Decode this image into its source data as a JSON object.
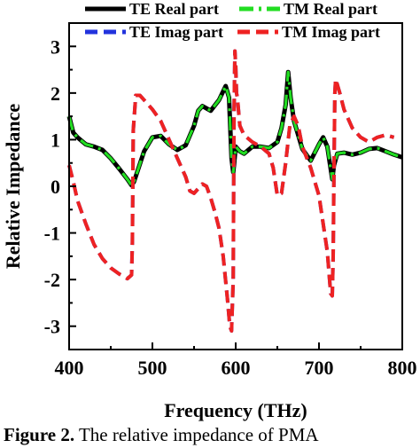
{
  "chart_data": {
    "type": "line",
    "xlabel": "Frequency (THz)",
    "ylabel": "Relative Impedance",
    "xlim": [
      400,
      800
    ],
    "ylim": [
      -3.5,
      3.5
    ],
    "xticks": [
      400,
      500,
      600,
      700,
      800
    ],
    "yticks": [
      -3,
      -2,
      -1,
      0,
      1,
      2,
      3
    ],
    "grid": false,
    "legend_position": "top",
    "series": [
      {
        "name": "TE Real part",
        "color": "#000000",
        "style": "solid",
        "x": [
          400,
          405,
          410,
          420,
          430,
          440,
          450,
          460,
          470,
          475,
          478,
          482,
          490,
          500,
          510,
          520,
          530,
          540,
          550,
          555,
          560,
          570,
          580,
          588,
          592,
          595,
          597,
          598,
          600,
          605,
          610,
          620,
          630,
          640,
          650,
          655,
          660,
          663,
          666,
          670,
          680,
          690,
          700,
          705,
          710,
          713,
          716,
          718,
          722,
          730,
          740,
          750,
          760,
          770,
          780,
          790,
          800
        ],
        "y": [
          1.5,
          1.15,
          1.05,
          0.9,
          0.85,
          0.78,
          0.6,
          0.38,
          0.15,
          0.02,
          0.1,
          0.32,
          0.75,
          1.05,
          1.08,
          0.9,
          0.78,
          0.88,
          1.3,
          1.62,
          1.72,
          1.62,
          1.85,
          2.15,
          1.9,
          0.6,
          0.3,
          0.45,
          0.85,
          0.75,
          0.7,
          0.85,
          0.85,
          0.82,
          0.95,
          1.25,
          1.75,
          2.45,
          1.9,
          1.4,
          0.8,
          0.55,
          0.9,
          1.05,
          0.85,
          0.5,
          0.15,
          0.45,
          0.7,
          0.72,
          0.68,
          0.72,
          0.8,
          0.82,
          0.75,
          0.68,
          0.62
        ]
      },
      {
        "name": "TM Real part",
        "color": "#22dd22",
        "style": "dash-dot",
        "x": [
          400,
          405,
          410,
          420,
          430,
          440,
          450,
          460,
          470,
          475,
          478,
          482,
          490,
          500,
          510,
          520,
          530,
          540,
          550,
          555,
          560,
          570,
          580,
          588,
          592,
          595,
          597,
          598,
          600,
          605,
          610,
          620,
          630,
          640,
          650,
          655,
          660,
          663,
          666,
          670,
          680,
          690,
          700,
          705,
          710,
          713,
          716,
          718,
          722,
          730,
          740,
          750,
          760,
          770,
          780,
          790,
          800
        ],
        "y": [
          1.5,
          1.15,
          1.05,
          0.9,
          0.85,
          0.78,
          0.6,
          0.38,
          0.15,
          0.02,
          0.1,
          0.32,
          0.75,
          1.05,
          1.08,
          0.9,
          0.78,
          0.88,
          1.3,
          1.62,
          1.72,
          1.62,
          1.85,
          2.15,
          1.9,
          0.6,
          0.3,
          0.45,
          0.85,
          0.75,
          0.7,
          0.85,
          0.85,
          0.82,
          0.95,
          1.25,
          1.75,
          2.45,
          1.9,
          1.4,
          0.8,
          0.55,
          0.9,
          1.05,
          0.85,
          0.5,
          0.15,
          0.45,
          0.7,
          0.72,
          0.68,
          0.72,
          0.8,
          0.82,
          0.75,
          0.68,
          0.62
        ]
      },
      {
        "name": "TE Imag part",
        "color": "#2233dd",
        "style": "dashed",
        "x": [
          400,
          405,
          410,
          420,
          430,
          440,
          450,
          460,
          470,
          475,
          476,
          477,
          480,
          485,
          490,
          500,
          510,
          520,
          530,
          540,
          545,
          550,
          555,
          560,
          565,
          570,
          575,
          580,
          585,
          590,
          593,
          595,
          597,
          598,
          599,
          600,
          601,
          602,
          605,
          610,
          620,
          630,
          640,
          645,
          650,
          655,
          660,
          665,
          670,
          675,
          680,
          690,
          700,
          705,
          710,
          712,
          714,
          716,
          717,
          718,
          719,
          720,
          725,
          730,
          740,
          750,
          760,
          770,
          780,
          790
        ],
        "y": [
          0.45,
          0.1,
          -0.3,
          -0.8,
          -1.25,
          -1.55,
          -1.75,
          -1.88,
          -1.98,
          -1.9,
          -1.2,
          1.2,
          1.95,
          1.95,
          1.85,
          1.65,
          1.4,
          1.0,
          0.6,
          0.2,
          -0.1,
          -0.15,
          -0.05,
          0.05,
          0.0,
          -0.25,
          -0.55,
          -0.9,
          -1.5,
          -2.4,
          -3.0,
          -3.1,
          -2.0,
          1.5,
          2.9,
          2.6,
          2.0,
          1.9,
          1.3,
          1.1,
          0.95,
          0.85,
          0.7,
          0.4,
          -0.2,
          -0.15,
          0.5,
          1.3,
          1.5,
          1.3,
          0.85,
          0.4,
          -0.2,
          -0.8,
          -1.4,
          -1.85,
          -2.3,
          -2.35,
          -1.5,
          0.3,
          2.0,
          2.3,
          2.0,
          1.65,
          1.25,
          1.05,
          0.95,
          1.05,
          1.1,
          1.05
        ]
      },
      {
        "name": "TM Imag part",
        "color": "#ee2222",
        "style": "dashed",
        "x": [
          400,
          405,
          410,
          420,
          430,
          440,
          450,
          460,
          470,
          475,
          476,
          477,
          480,
          485,
          490,
          500,
          510,
          520,
          530,
          540,
          545,
          550,
          555,
          560,
          565,
          570,
          575,
          580,
          585,
          590,
          593,
          595,
          597,
          598,
          599,
          600,
          601,
          602,
          605,
          610,
          620,
          630,
          640,
          645,
          650,
          655,
          660,
          665,
          670,
          675,
          680,
          690,
          700,
          705,
          710,
          712,
          714,
          716,
          717,
          718,
          719,
          720,
          725,
          730,
          740,
          750,
          760,
          770,
          780,
          790
        ],
        "y": [
          0.45,
          0.1,
          -0.3,
          -0.8,
          -1.25,
          -1.55,
          -1.75,
          -1.88,
          -1.98,
          -1.9,
          -1.2,
          1.2,
          1.95,
          1.95,
          1.85,
          1.65,
          1.4,
          1.0,
          0.6,
          0.2,
          -0.1,
          -0.15,
          -0.05,
          0.05,
          0.0,
          -0.25,
          -0.55,
          -0.9,
          -1.5,
          -2.4,
          -3.0,
          -3.1,
          -2.0,
          1.5,
          2.9,
          2.6,
          2.0,
          1.9,
          1.3,
          1.1,
          0.95,
          0.85,
          0.7,
          0.4,
          -0.2,
          -0.15,
          0.5,
          1.3,
          1.5,
          1.3,
          0.85,
          0.4,
          -0.2,
          -0.8,
          -1.4,
          -1.85,
          -2.3,
          -2.35,
          -1.5,
          0.3,
          2.0,
          2.3,
          2.0,
          1.65,
          1.25,
          1.05,
          0.95,
          1.05,
          1.1,
          1.05
        ]
      }
    ]
  },
  "caption": {
    "label": "Figure 2.",
    "text": " The relative impedance of PMA"
  }
}
